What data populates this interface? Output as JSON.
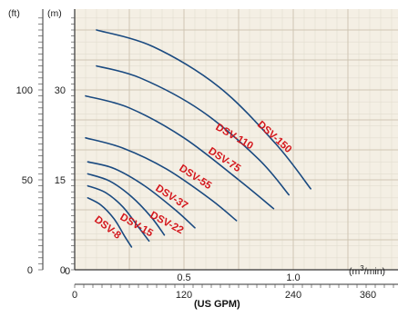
{
  "chart_data": {
    "type": "line",
    "title": "",
    "xlabel": "(m³/min)",
    "xlabel_secondary": "(US GPM)",
    "ylabel_left": "(ft)",
    "ylabel_right": "(m)",
    "xlim": [
      0,
      1.2
    ],
    "ylim_m": [
      0,
      45
    ],
    "x_ticks_m3min": [
      "0",
      "0.5",
      "1.0"
    ],
    "x_ticks_gpm": [
      "0",
      "120",
      "240",
      "360"
    ],
    "y_ticks_m": [
      "0",
      "15",
      "30"
    ],
    "y_ticks_ft": [
      "0",
      "50",
      "100"
    ],
    "grid": true,
    "series": [
      {
        "name": "DSV-8",
        "x": [
          0.06,
          0.12,
          0.18,
          0.23,
          0.26
        ],
        "y": [
          12.0,
          10.8,
          8.5,
          5.5,
          3.8
        ]
      },
      {
        "name": "DSV-15",
        "x": [
          0.06,
          0.14,
          0.22,
          0.29,
          0.34
        ],
        "y": [
          14.0,
          12.9,
          10.5,
          7.2,
          4.8
        ]
      },
      {
        "name": "DSV-22",
        "x": [
          0.06,
          0.16,
          0.26,
          0.35,
          0.41
        ],
        "y": [
          16.0,
          14.8,
          12.2,
          8.8,
          5.8
        ]
      },
      {
        "name": "DSV-37",
        "x": [
          0.06,
          0.18,
          0.32,
          0.46,
          0.55
        ],
        "y": [
          18.0,
          16.9,
          14.0,
          10.0,
          7.0
        ]
      },
      {
        "name": "DSV-55",
        "x": [
          0.05,
          0.22,
          0.42,
          0.62,
          0.74
        ],
        "y": [
          22.0,
          20.3,
          16.8,
          11.8,
          8.2
        ]
      },
      {
        "name": "DSV-75",
        "x": [
          0.05,
          0.25,
          0.5,
          0.75,
          0.91
        ],
        "y": [
          29.0,
          27.0,
          22.0,
          15.0,
          10.2
        ]
      },
      {
        "name": "DSV-110",
        "x": [
          0.1,
          0.3,
          0.58,
          0.84,
          0.98
        ],
        "y": [
          34.0,
          32.0,
          26.5,
          18.5,
          12.5
        ]
      },
      {
        "name": "DSV-150",
        "x": [
          0.1,
          0.36,
          0.66,
          0.92,
          1.08
        ],
        "y": [
          40.0,
          37.2,
          30.5,
          21.0,
          13.5
        ]
      }
    ]
  }
}
